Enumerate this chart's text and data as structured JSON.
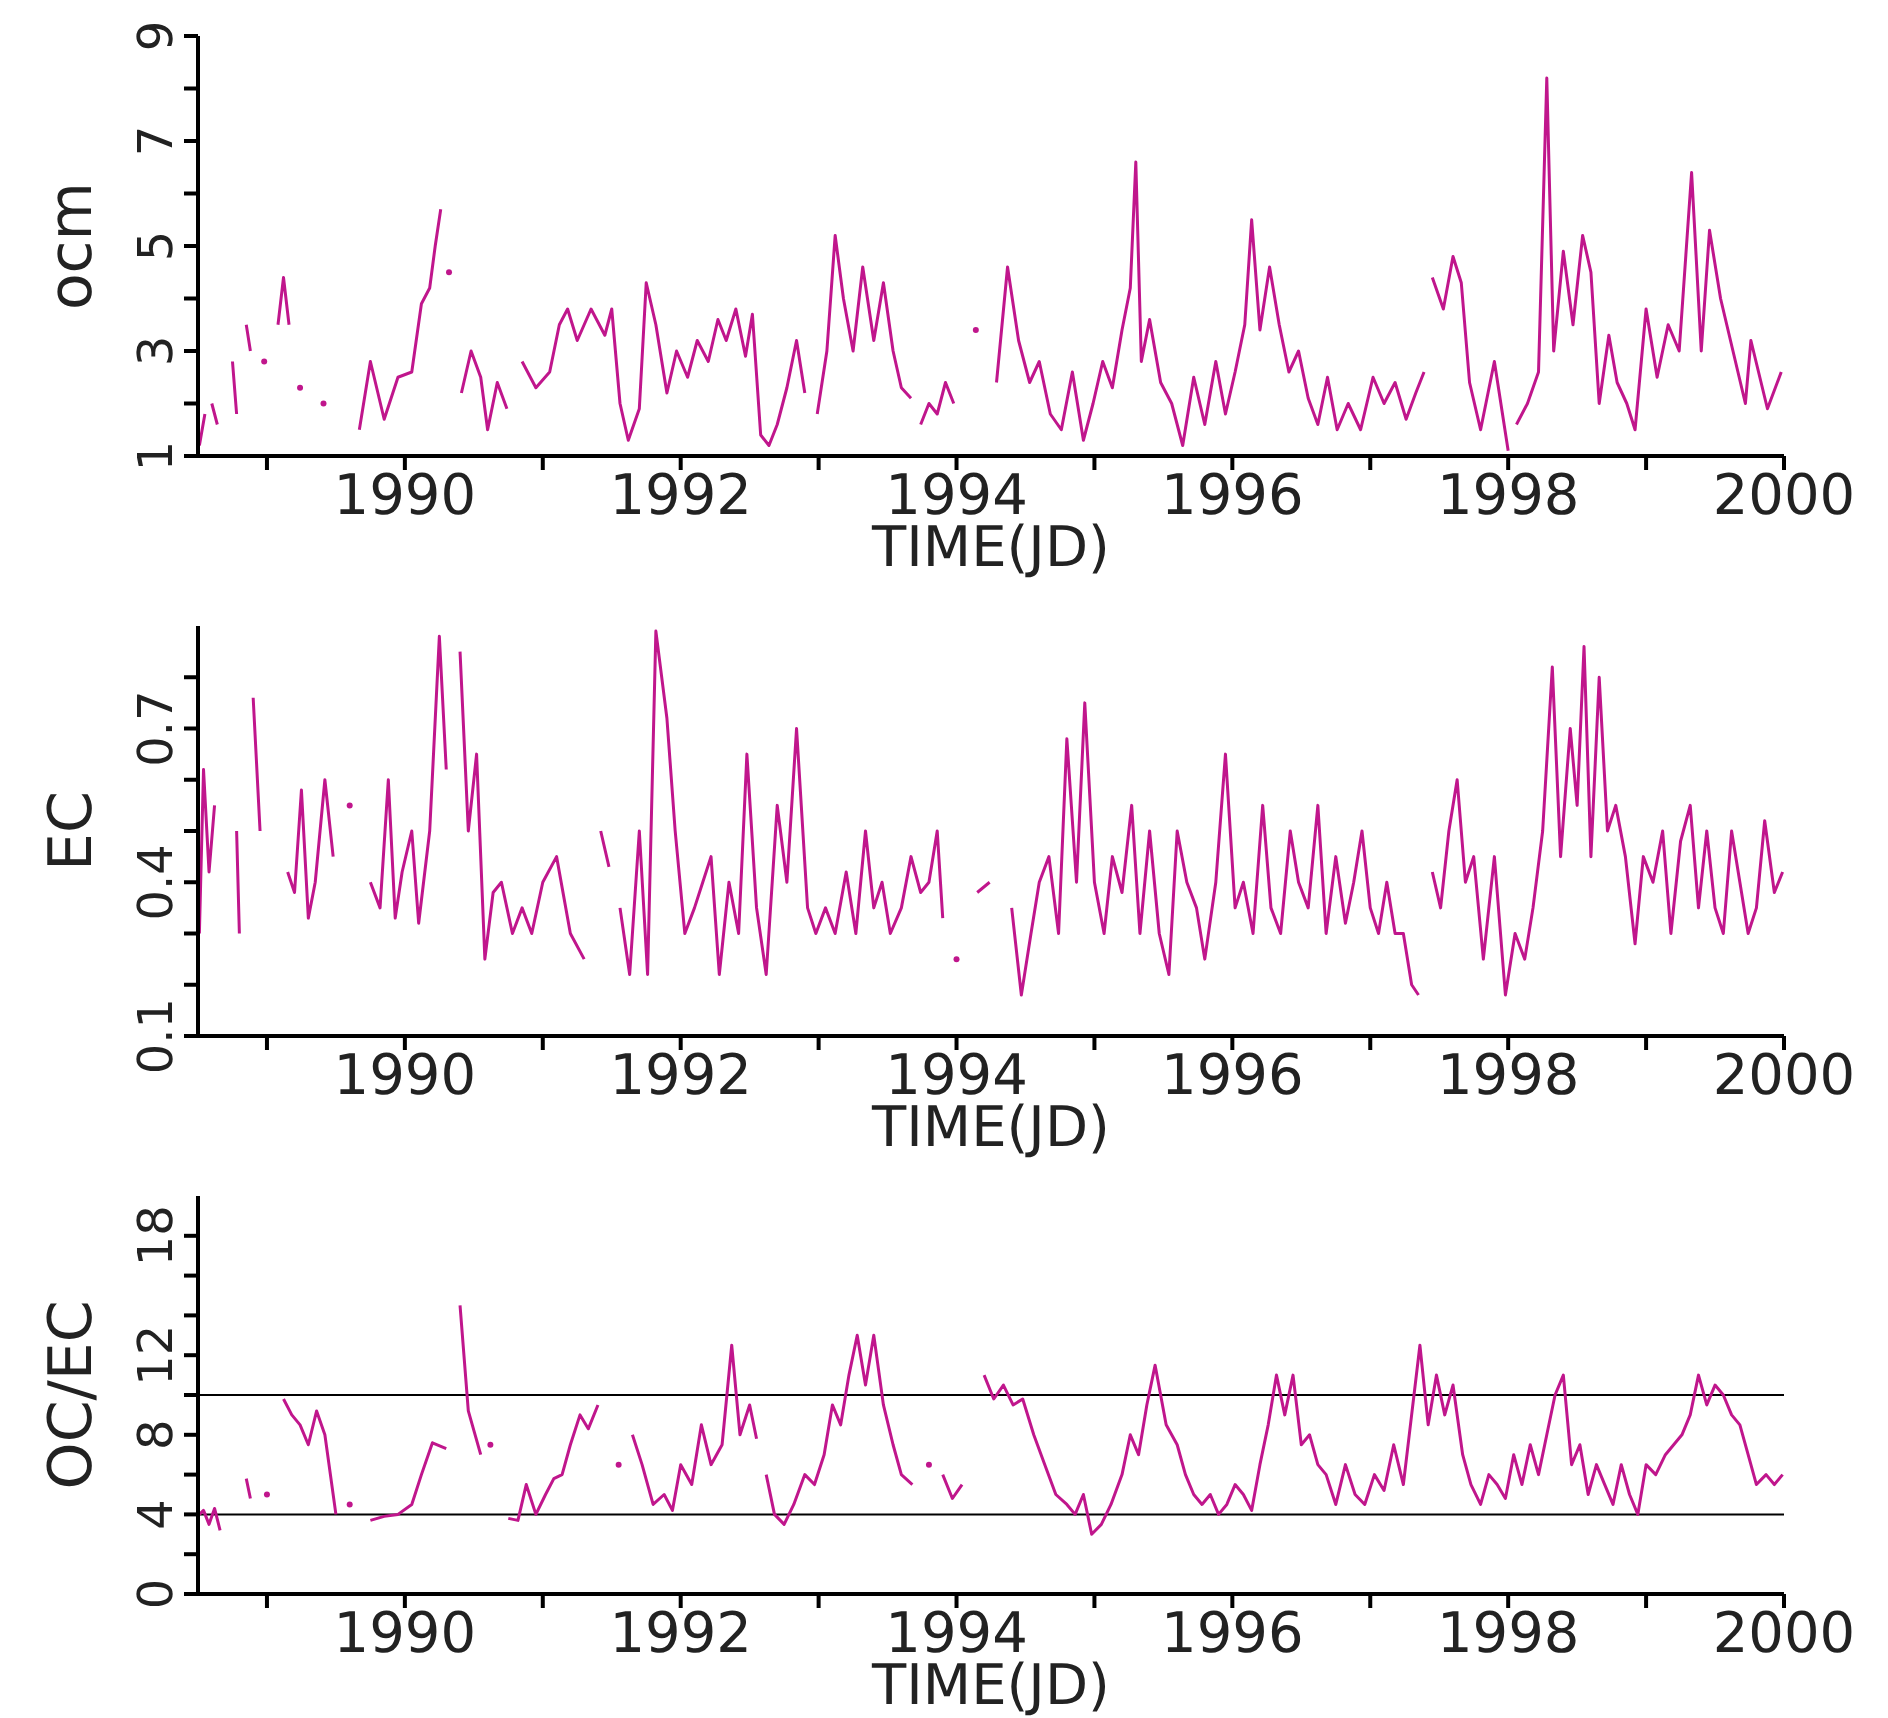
{
  "chart_data": [
    {
      "type": "line",
      "xlabel": "TIME(JD)",
      "ylabel": "ocm",
      "marker": "none",
      "line_style": "solid",
      "xlim": [
        1988.5,
        2000
      ],
      "xticks": [
        {
          "value": 1989,
          "label": null
        },
        1990,
        {
          "value": 1991,
          "label": null
        },
        1992,
        {
          "value": 1993,
          "label": null
        },
        1994,
        {
          "value": 1995,
          "label": null
        },
        1996,
        {
          "value": 1997,
          "label": null
        },
        1998,
        {
          "value": 1999,
          "label": null
        },
        2000
      ],
      "ylim": [
        1,
        9
      ],
      "yticks": [
        1,
        {
          "value": 2,
          "label": null
        },
        3,
        {
          "value": 4,
          "label": null
        },
        5,
        {
          "value": 6,
          "label": null
        },
        7,
        {
          "value": 8,
          "label": null
        },
        9
      ],
      "x": [
        1988.51,
        1988.55,
        1988.58,
        1988.6,
        1988.64,
        1988.7,
        1988.75,
        1988.78,
        1988.81,
        1988.85,
        1988.88,
        1988.92,
        1988.98,
        1989.0,
        1989.08,
        1989.12,
        1989.16,
        1989.2,
        1989.24,
        1989.3,
        1989.41,
        1989.5,
        1989.67,
        1989.75,
        1989.85,
        1989.95,
        1990.05,
        1990.12,
        1990.18,
        1990.22,
        1990.26,
        1990.29,
        1990.32,
        1990.36,
        1990.41,
        1990.48,
        1990.55,
        1990.6,
        1990.67,
        1990.74,
        1990.8,
        1990.85,
        1990.95,
        1991.05,
        1991.12,
        1991.18,
        1991.25,
        1991.35,
        1991.45,
        1991.5,
        1991.56,
        1991.62,
        1991.7,
        1991.75,
        1991.82,
        1991.9,
        1991.97,
        1992.05,
        1992.12,
        1992.2,
        1992.27,
        1992.33,
        1992.4,
        1992.47,
        1992.52,
        1992.58,
        1992.64,
        1992.7,
        1992.77,
        1992.84,
        1992.9,
        1992.94,
        1992.99,
        1993.06,
        1993.12,
        1993.18,
        1993.25,
        1993.32,
        1993.4,
        1993.47,
        1993.54,
        1993.6,
        1993.67,
        1993.7,
        1993.74,
        1993.8,
        1993.86,
        1993.92,
        1993.98,
        1994.05,
        1994.14,
        1994.2,
        1994.29,
        1994.37,
        1994.45,
        1994.53,
        1994.6,
        1994.68,
        1994.76,
        1994.84,
        1994.92,
        1994.99,
        1995.06,
        1995.13,
        1995.2,
        1995.26,
        1995.3,
        1995.34,
        1995.4,
        1995.48,
        1995.56,
        1995.64,
        1995.72,
        1995.8,
        1995.88,
        1995.95,
        1996.02,
        1996.09,
        1996.14,
        1996.2,
        1996.27,
        1996.34,
        1996.41,
        1996.48,
        1996.55,
        1996.62,
        1996.69,
        1996.76,
        1996.84,
        1996.93,
        1997.02,
        1997.1,
        1997.18,
        1997.26,
        1997.33,
        1997.39,
        1997.42,
        1997.45,
        1997.53,
        1997.6,
        1997.66,
        1997.72,
        1997.8,
        1997.9,
        1998.0,
        1998.03,
        1998.06,
        1998.14,
        1998.22,
        1998.28,
        1998.33,
        1998.4,
        1998.47,
        1998.54,
        1998.6,
        1998.66,
        1998.73,
        1998.79,
        1998.86,
        1998.92,
        1999.0,
        1999.08,
        1999.16,
        1999.24,
        1999.33,
        1999.4,
        1999.46,
        1999.54,
        1999.63,
        1999.72,
        1999.76,
        1999.88,
        1999.98
      ],
      "series": [
        {
          "color": "#c0168c",
          "values": [
            1.2,
            1.8,
            null,
            2.0,
            1.6,
            null,
            2.8,
            1.8,
            null,
            3.5,
            3.0,
            null,
            2.8,
            null,
            3.5,
            4.4,
            3.5,
            null,
            2.3,
            null,
            2.0,
            null,
            1.5,
            2.8,
            1.7,
            2.5,
            2.6,
            3.9,
            4.2,
            5.0,
            5.7,
            null,
            4.5,
            null,
            2.2,
            3.0,
            2.5,
            1.5,
            2.4,
            1.9,
            null,
            2.8,
            2.3,
            2.6,
            3.5,
            3.8,
            3.2,
            3.8,
            3.3,
            3.8,
            2.0,
            1.3,
            1.9,
            4.3,
            3.5,
            2.2,
            3.0,
            2.5,
            3.2,
            2.8,
            3.6,
            3.2,
            3.8,
            2.9,
            3.7,
            1.4,
            1.2,
            1.6,
            2.3,
            3.2,
            2.2,
            null,
            1.8,
            3.0,
            5.2,
            4.0,
            3.0,
            4.6,
            3.2,
            4.3,
            3.0,
            2.3,
            2.1,
            null,
            1.6,
            2.0,
            1.8,
            2.4,
            2.0,
            null,
            3.4,
            null,
            2.4,
            4.6,
            3.2,
            2.4,
            2.8,
            1.8,
            1.5,
            2.6,
            1.3,
            2.0,
            2.8,
            2.3,
            3.4,
            4.2,
            6.6,
            2.8,
            3.6,
            2.4,
            2.0,
            1.2,
            2.5,
            1.6,
            2.8,
            1.8,
            2.6,
            3.5,
            5.5,
            3.4,
            4.6,
            3.5,
            2.6,
            3.0,
            2.1,
            1.6,
            2.5,
            1.5,
            2.0,
            1.5,
            2.5,
            2.0,
            2.4,
            1.7,
            2.2,
            2.6,
            null,
            4.4,
            3.8,
            4.8,
            4.3,
            2.4,
            1.5,
            2.8,
            1.1,
            null,
            1.6,
            2.0,
            2.6,
            8.2,
            3.0,
            4.9,
            3.5,
            5.2,
            4.5,
            2.0,
            3.3,
            2.4,
            2.0,
            1.5,
            3.8,
            2.5,
            3.5,
            3.0,
            6.4,
            3.0,
            5.3,
            4.0,
            3.0,
            2.0,
            3.2,
            1.9,
            2.6
          ]
        }
      ]
    },
    {
      "type": "line",
      "xlabel": "TIME(JD)",
      "ylabel": "EC",
      "marker": "none",
      "line_style": "solid",
      "xlim": [
        1988.5,
        2000
      ],
      "xticks": [
        {
          "value": 1989,
          "label": null
        },
        1990,
        {
          "value": 1991,
          "label": null
        },
        1992,
        {
          "value": 1993,
          "label": null
        },
        1994,
        {
          "value": 1995,
          "label": null
        },
        1996,
        {
          "value": 1997,
          "label": null
        },
        1998,
        {
          "value": 1999,
          "label": null
        },
        2000
      ],
      "ylim": [
        0.1,
        0.9
      ],
      "yticks": [
        0.1,
        {
          "value": 0.2,
          "label": null
        },
        {
          "value": 0.3,
          "label": null
        },
        0.4,
        {
          "value": 0.5,
          "label": null
        },
        {
          "value": 0.6,
          "label": null
        },
        0.7,
        {
          "value": 0.8,
          "label": null
        }
      ],
      "x": [
        1988.51,
        1988.54,
        1988.58,
        1988.62,
        1988.66,
        1988.78,
        1988.8,
        1988.84,
        1988.9,
        1988.95,
        1989.0,
        1989.15,
        1989.2,
        1989.25,
        1989.3,
        1989.35,
        1989.42,
        1989.48,
        1989.52,
        1989.6,
        1989.65,
        1989.75,
        1989.82,
        1989.88,
        1989.93,
        1989.98,
        1990.05,
        1990.1,
        1990.18,
        1990.25,
        1990.3,
        1990.36,
        1990.4,
        1990.46,
        1990.52,
        1990.58,
        1990.64,
        1990.7,
        1990.78,
        1990.85,
        1990.92,
        1991.0,
        1991.1,
        1991.2,
        1991.3,
        1991.36,
        1991.42,
        1991.48,
        1991.52,
        1991.56,
        1991.63,
        1991.7,
        1991.76,
        1991.82,
        1991.9,
        1991.96,
        1992.03,
        1992.1,
        1992.16,
        1992.22,
        1992.28,
        1992.35,
        1992.42,
        1992.48,
        1992.55,
        1992.62,
        1992.7,
        1992.77,
        1992.84,
        1992.92,
        1992.98,
        1993.05,
        1993.12,
        1993.2,
        1993.27,
        1993.34,
        1993.4,
        1993.46,
        1993.52,
        1993.6,
        1993.67,
        1993.74,
        1993.8,
        1993.86,
        1993.9,
        1993.94,
        1994.0,
        1994.04,
        1994.15,
        1994.24,
        1994.3,
        1994.4,
        1994.47,
        1994.54,
        1994.6,
        1994.67,
        1994.74,
        1994.8,
        1994.87,
        1994.93,
        1995.0,
        1995.07,
        1995.13,
        1995.2,
        1995.27,
        1995.33,
        1995.4,
        1995.47,
        1995.54,
        1995.6,
        1995.67,
        1995.74,
        1995.8,
        1995.88,
        1995.95,
        1996.02,
        1996.08,
        1996.15,
        1996.22,
        1996.28,
        1996.35,
        1996.42,
        1996.48,
        1996.55,
        1996.62,
        1996.68,
        1996.75,
        1996.82,
        1996.88,
        1996.94,
        1997.0,
        1997.06,
        1997.12,
        1997.18,
        1997.24,
        1997.3,
        1997.35,
        1997.4,
        1997.45,
        1997.51,
        1997.57,
        1997.63,
        1997.69,
        1997.75,
        1997.82,
        1997.9,
        1997.98,
        1998.05,
        1998.12,
        1998.18,
        1998.25,
        1998.32,
        1998.38,
        1998.45,
        1998.5,
        1998.55,
        1998.6,
        1998.66,
        1998.72,
        1998.78,
        1998.85,
        1998.92,
        1998.98,
        1999.05,
        1999.12,
        1999.18,
        1999.25,
        1999.32,
        1999.38,
        1999.44,
        1999.5,
        1999.56,
        1999.62,
        1999.68,
        1999.74,
        1999.8,
        1999.86,
        1999.93,
        1999.99
      ],
      "series": [
        {
          "color": "#c0168c",
          "values": [
            0.3,
            0.62,
            0.42,
            0.55,
            null,
            0.5,
            0.3,
            null,
            0.76,
            0.5,
            null,
            0.42,
            0.38,
            0.58,
            0.33,
            0.4,
            0.6,
            0.45,
            null,
            0.55,
            null,
            0.4,
            0.35,
            0.6,
            0.33,
            0.42,
            0.5,
            0.32,
            0.5,
            0.88,
            0.62,
            null,
            0.85,
            0.5,
            0.65,
            0.25,
            0.38,
            0.4,
            0.3,
            0.35,
            0.3,
            0.4,
            0.45,
            0.3,
            0.25,
            null,
            0.5,
            0.43,
            null,
            0.35,
            0.22,
            0.5,
            0.22,
            0.89,
            0.72,
            0.5,
            0.3,
            0.35,
            0.4,
            0.45,
            0.22,
            0.4,
            0.3,
            0.65,
            0.35,
            0.22,
            0.55,
            0.4,
            0.7,
            0.35,
            0.3,
            0.35,
            0.3,
            0.42,
            0.3,
            0.5,
            0.35,
            0.4,
            0.3,
            0.35,
            0.45,
            0.38,
            0.4,
            0.5,
            0.33,
            null,
            0.25,
            null,
            0.38,
            0.4,
            null,
            0.35,
            0.18,
            0.3,
            0.4,
            0.45,
            0.3,
            0.68,
            0.4,
            0.75,
            0.4,
            0.3,
            0.45,
            0.38,
            0.55,
            0.3,
            0.5,
            0.3,
            0.22,
            0.5,
            0.4,
            0.35,
            0.25,
            0.4,
            0.65,
            0.35,
            0.4,
            0.3,
            0.55,
            0.35,
            0.3,
            0.5,
            0.4,
            0.35,
            0.55,
            0.3,
            0.45,
            0.32,
            0.4,
            0.5,
            0.35,
            0.3,
            0.4,
            0.3,
            0.3,
            0.2,
            0.18,
            null,
            0.42,
            0.35,
            0.5,
            0.6,
            0.4,
            0.45,
            0.25,
            0.45,
            0.18,
            0.3,
            0.25,
            0.35,
            0.5,
            0.82,
            0.45,
            0.7,
            0.55,
            0.86,
            0.45,
            0.8,
            0.5,
            0.55,
            0.45,
            0.28,
            0.45,
            0.4,
            0.5,
            0.3,
            0.48,
            0.55,
            0.35,
            0.5,
            0.35,
            0.3,
            0.5,
            0.4,
            0.3,
            0.35,
            0.52,
            0.38,
            0.42
          ]
        }
      ]
    },
    {
      "type": "line",
      "xlabel": "TIME(JD)",
      "ylabel": "OC/EC",
      "marker": "none",
      "line_style": "solid",
      "xlim": [
        1988.5,
        2000
      ],
      "xticks": [
        {
          "value": 1989,
          "label": null
        },
        1990,
        {
          "value": 1991,
          "label": null
        },
        1992,
        {
          "value": 1993,
          "label": null
        },
        1994,
        {
          "value": 1995,
          "label": null
        },
        1996,
        {
          "value": 1997,
          "label": null
        },
        1998,
        {
          "value": 1999,
          "label": null
        },
        2000
      ],
      "ylim": [
        0,
        20
      ],
      "yticks": [
        0,
        {
          "value": 2,
          "label": null
        },
        4,
        {
          "value": 6,
          "label": null
        },
        8,
        {
          "value": 10,
          "label": null
        },
        12,
        {
          "value": 14,
          "label": null
        },
        {
          "value": 16,
          "label": null
        },
        18
      ],
      "ref_lines": [
        {
          "axis": "y",
          "value": 4,
          "color": "#000000"
        },
        {
          "axis": "y",
          "value": 10,
          "color": "#000000"
        }
      ],
      "x": [
        1988.51,
        1988.54,
        1988.58,
        1988.62,
        1988.66,
        1988.7,
        1988.85,
        1988.88,
        1988.92,
        1989.0,
        1989.05,
        1989.12,
        1989.18,
        1989.24,
        1989.3,
        1989.36,
        1989.42,
        1989.5,
        1989.55,
        1989.6,
        1989.65,
        1989.75,
        1989.85,
        1989.95,
        1990.05,
        1990.12,
        1990.2,
        1990.3,
        1990.36,
        1990.4,
        1990.46,
        1990.55,
        1990.58,
        1990.62,
        1990.67,
        1990.75,
        1990.82,
        1990.88,
        1990.95,
        1991.02,
        1991.08,
        1991.14,
        1991.2,
        1991.27,
        1991.33,
        1991.4,
        1991.45,
        1991.55,
        1991.6,
        1991.65,
        1991.72,
        1991.8,
        1991.88,
        1991.94,
        1992.0,
        1992.08,
        1992.15,
        1992.22,
        1992.3,
        1992.37,
        1992.43,
        1992.5,
        1992.55,
        1992.6,
        1992.62,
        1992.68,
        1992.75,
        1992.82,
        1992.9,
        1992.97,
        1993.04,
        1993.1,
        1993.16,
        1993.22,
        1993.28,
        1993.34,
        1993.4,
        1993.47,
        1993.54,
        1993.6,
        1993.68,
        1993.72,
        1993.8,
        1993.84,
        1993.9,
        1993.97,
        1994.04,
        1994.1,
        1994.2,
        1994.27,
        1994.34,
        1994.41,
        1994.48,
        1994.56,
        1994.64,
        1994.72,
        1994.8,
        1994.86,
        1994.92,
        1994.98,
        1995.05,
        1995.12,
        1995.2,
        1995.26,
        1995.32,
        1995.38,
        1995.44,
        1995.52,
        1995.6,
        1995.66,
        1995.72,
        1995.78,
        1995.84,
        1995.9,
        1995.96,
        1996.02,
        1996.08,
        1996.14,
        1996.2,
        1996.26,
        1996.32,
        1996.38,
        1996.44,
        1996.5,
        1996.56,
        1996.62,
        1996.68,
        1996.75,
        1996.82,
        1996.89,
        1996.96,
        1997.03,
        1997.1,
        1997.17,
        1997.24,
        1997.3,
        1997.36,
        1997.42,
        1997.48,
        1997.54,
        1997.6,
        1997.67,
        1997.73,
        1997.8,
        1997.86,
        1997.92,
        1997.98,
        1998.04,
        1998.1,
        1998.16,
        1998.22,
        1998.28,
        1998.34,
        1998.4,
        1998.46,
        1998.52,
        1998.58,
        1998.64,
        1998.7,
        1998.76,
        1998.82,
        1998.88,
        1998.94,
        1999.0,
        1999.07,
        1999.14,
        1999.2,
        1999.26,
        1999.32,
        1999.38,
        1999.44,
        1999.5,
        1999.56,
        1999.62,
        1999.68,
        1999.74,
        1999.8,
        1999.87,
        1999.93,
        1999.99
      ],
      "series": [
        {
          "color": "#c0168c",
          "values": [
            4.0,
            4.2,
            3.5,
            4.3,
            3.2,
            null,
            5.8,
            4.8,
            null,
            5.0,
            null,
            9.8,
            9.0,
            8.5,
            7.5,
            9.2,
            8.0,
            4.0,
            null,
            4.5,
            null,
            3.7,
            3.9,
            4.0,
            4.5,
            6.0,
            7.6,
            7.3,
            null,
            14.5,
            9.2,
            7.0,
            null,
            7.5,
            null,
            3.8,
            3.7,
            5.5,
            4.0,
            5.0,
            5.8,
            6.0,
            7.5,
            9.0,
            8.3,
            9.5,
            null,
            6.5,
            null,
            8.0,
            6.5,
            4.5,
            5.0,
            4.2,
            6.5,
            5.5,
            8.5,
            6.5,
            7.5,
            12.5,
            8.0,
            9.5,
            7.8,
            null,
            6.0,
            4.0,
            3.5,
            4.5,
            6.0,
            5.5,
            7.0,
            9.5,
            8.5,
            11.0,
            13.0,
            10.5,
            13.0,
            9.5,
            7.5,
            6.0,
            5.5,
            null,
            6.5,
            null,
            6.0,
            4.8,
            5.5,
            null,
            11.0,
            9.8,
            10.5,
            9.5,
            9.8,
            8.0,
            6.5,
            5.0,
            4.5,
            4.0,
            5.0,
            3.0,
            3.5,
            4.5,
            6.0,
            8.0,
            7.0,
            9.5,
            11.5,
            8.5,
            7.5,
            6.0,
            5.0,
            4.5,
            5.0,
            4.0,
            4.5,
            5.5,
            5.0,
            4.2,
            6.5,
            8.5,
            11.0,
            9.0,
            11.0,
            7.5,
            8.0,
            6.5,
            6.0,
            4.5,
            6.5,
            5.0,
            4.5,
            6.0,
            5.2,
            7.5,
            5.5,
            9.0,
            12.5,
            8.5,
            11.0,
            9.0,
            10.5,
            7.0,
            5.5,
            4.5,
            6.0,
            5.5,
            4.8,
            7.0,
            5.5,
            7.5,
            6.0,
            8.0,
            10.0,
            11.0,
            6.5,
            7.5,
            5.0,
            6.5,
            5.5,
            4.5,
            6.5,
            5.0,
            4.0,
            6.5,
            6.0,
            7.0,
            7.5,
            8.0,
            9.0,
            11.0,
            9.5,
            10.5,
            10.0,
            9.0,
            8.5,
            7.0,
            5.5,
            6.0,
            5.5,
            6.0
          ]
        }
      ]
    }
  ]
}
